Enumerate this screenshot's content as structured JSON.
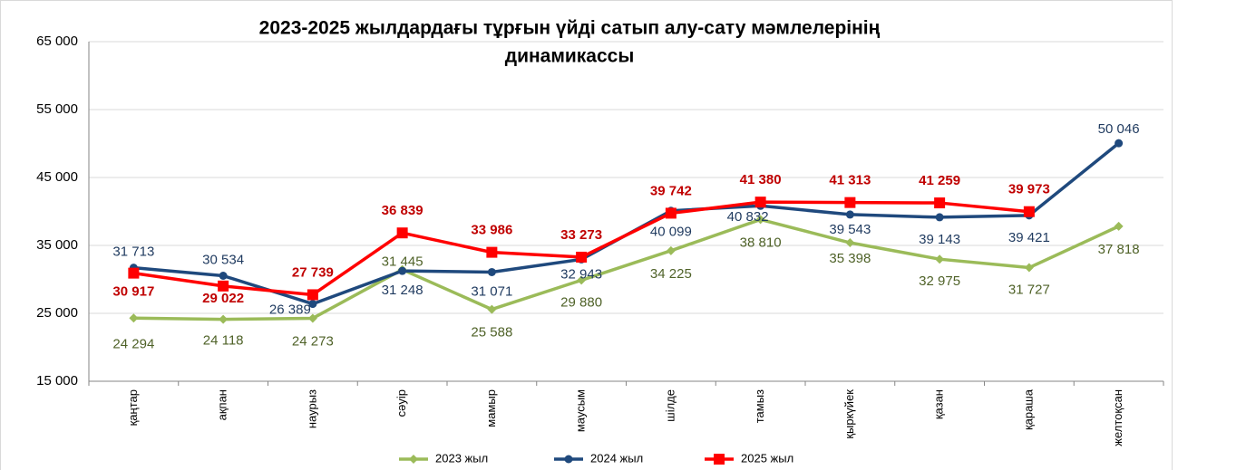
{
  "chart_data": {
    "type": "line",
    "title": [
      "2023-2025  жылдардағы тұрғын үйді сатып алу-сату мәмлелерінің",
      "динамикассы"
    ],
    "categories": [
      "қаңтар",
      "ақпан",
      "наурыз",
      "сәуір",
      "мамыр",
      "маусым",
      "шілде",
      "тамыз",
      "қыркүйек",
      "қазан",
      "қараша",
      "желтоқсан"
    ],
    "ylim": [
      15000,
      65000
    ],
    "yticks": [
      {
        "value": 15000,
        "label": "15 000"
      },
      {
        "value": 25000,
        "label": "25 000"
      },
      {
        "value": 35000,
        "label": "35 000"
      },
      {
        "value": 45000,
        "label": "45 000"
      },
      {
        "value": 55000,
        "label": "55 000"
      },
      {
        "value": 65000,
        "label": "65 000"
      }
    ],
    "grid": true,
    "legend": "bottom",
    "series": [
      {
        "name": "2023 жыл",
        "color": "#9bbb59",
        "marker": "diamond",
        "values": [
          24294,
          24118,
          24273,
          31445,
          25588,
          29880,
          34225,
          38810,
          35398,
          32975,
          31727,
          37818
        ],
        "value_labels": [
          "24 294",
          "24 118",
          "24 273",
          "31 445",
          "25 588",
          "29 880",
          "34 225",
          "38 810",
          "35 398",
          "32 975",
          "31 727",
          "37 818"
        ]
      },
      {
        "name": "2024 жыл",
        "color": "#1f497d",
        "marker": "circle",
        "values": [
          31713,
          30534,
          26389,
          31248,
          31071,
          32943,
          40099,
          40832,
          39543,
          39143,
          39421,
          50046
        ],
        "value_labels": [
          "31 713",
          "30 534",
          "26 389",
          "31 248",
          "31 071",
          "32 943",
          "40 099",
          "40 832",
          "39 543",
          "39 143",
          "39 421",
          "50 046"
        ]
      },
      {
        "name": "2025 жыл",
        "color": "#ff0000",
        "marker": "square",
        "values": [
          30917,
          29022,
          27739,
          36839,
          33986,
          33273,
          39742,
          41380,
          41313,
          41259,
          39973,
          null
        ],
        "value_labels": [
          "30 917",
          "29 022",
          "27 739",
          "36 839",
          "33 986",
          "33 273",
          "39 742",
          "41 380",
          "41 313",
          "41 259",
          "39 973",
          null
        ]
      }
    ]
  }
}
